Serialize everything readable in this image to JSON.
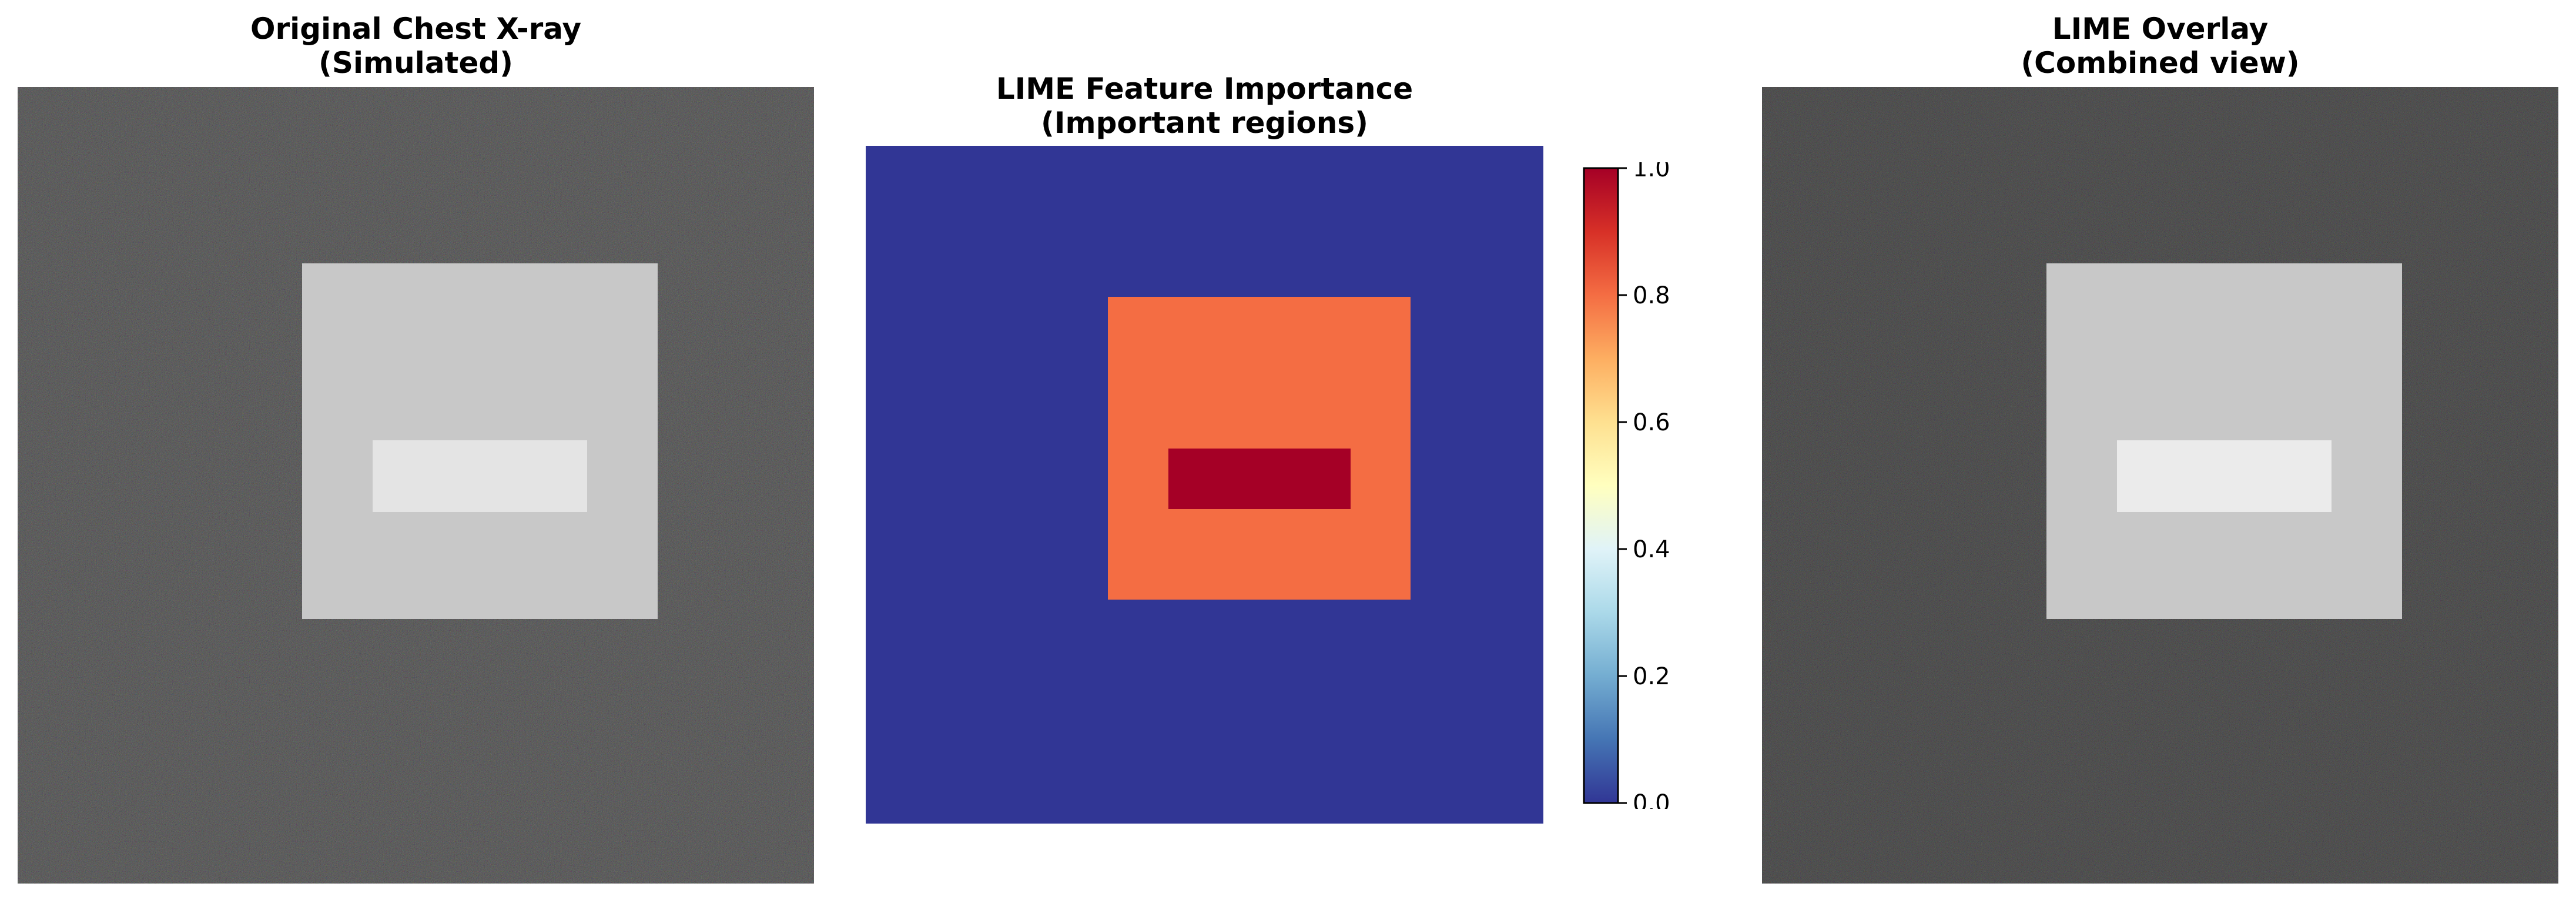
{
  "panels": [
    {
      "title_line1": "Original Chest X-ray",
      "title_line2": "(Simulated)"
    },
    {
      "title_line1": "LIME Feature Importance",
      "title_line2": "(Important regions)"
    },
    {
      "title_line1": "LIME Overlay",
      "title_line2": "(Combined view)"
    }
  ],
  "chart_data": [
    {
      "type": "image",
      "description_role": "grayscale-noise-image",
      "background": "noisy dark",
      "regions": [
        {
          "name": "outer-square",
          "shade": "#c8c8c8"
        },
        {
          "name": "inner-rectangle",
          "shade": "#e4e4e4"
        }
      ]
    },
    {
      "type": "heatmap",
      "colormap": "RdYlBu_r",
      "clim": [
        0.0,
        1.0
      ],
      "cells": [
        {
          "region": "background",
          "value": 0.0
        },
        {
          "region": "outer-square",
          "value": 0.8
        },
        {
          "region": "inner-rectangle",
          "value": 1.0
        }
      ],
      "colorbar": {
        "ticks": [
          "0.0",
          "0.2",
          "0.4",
          "0.6",
          "0.8",
          "1.0"
        ]
      }
    },
    {
      "type": "image",
      "background": "noisy dark",
      "regions": [
        {
          "name": "outer-square",
          "shade": "#c8c8c8"
        },
        {
          "name": "inner-rectangle",
          "shade": "#ebebeb"
        }
      ]
    }
  ],
  "colors": {
    "bg_dark": "#1f1f1f",
    "low": "#313695",
    "mid_high": "#f46d43",
    "high": "#a50026"
  }
}
